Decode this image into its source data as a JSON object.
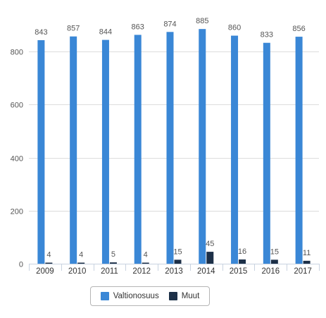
{
  "chart_data": {
    "type": "bar",
    "categories": [
      "2009",
      "2010",
      "2011",
      "2012",
      "2013",
      "2014",
      "2015",
      "2016",
      "2017"
    ],
    "series": [
      {
        "name": "Valtionosuus",
        "color": "#3a87d6",
        "values": [
          843,
          857,
          844,
          863,
          874,
          885,
          860,
          833,
          856
        ]
      },
      {
        "name": "Muut",
        "color": "#1d3048",
        "values": [
          4,
          4,
          5,
          4,
          15,
          45,
          16,
          15,
          11
        ]
      }
    ],
    "yticks": [
      0,
      200,
      400,
      600,
      800
    ],
    "ylim": [
      0,
      920
    ],
    "grid": true,
    "legend_position": "bottom"
  }
}
